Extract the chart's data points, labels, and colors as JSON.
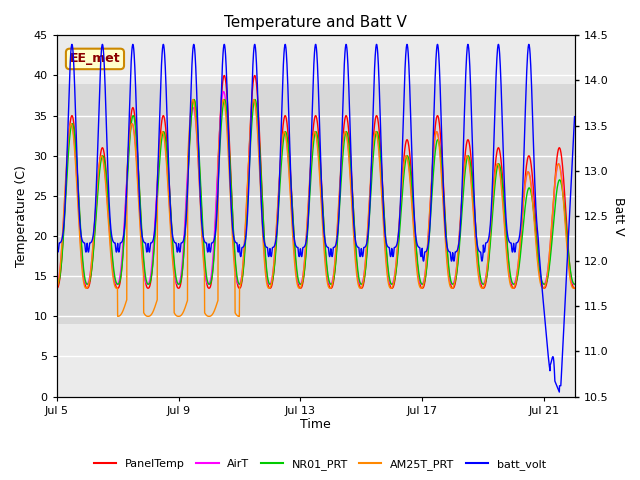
{
  "title": "Temperature and Batt V",
  "xlabel": "Time",
  "ylabel_left": "Temperature (C)",
  "ylabel_right": "Batt V",
  "ylim_left": [
    0,
    45
  ],
  "ylim_right": [
    10.5,
    14.5
  ],
  "xlim": [
    0,
    17
  ],
  "xtick_labels": [
    "Jul 5",
    "Jul 9",
    "Jul 13",
    "Jul 17",
    "Jul 21"
  ],
  "xtick_positions": [
    0,
    4,
    8,
    12,
    16
  ],
  "annotation_text": "EE_met",
  "shaded_band_light": [
    9,
    39
  ],
  "series_colors": {
    "PanelTemp": "#ff0000",
    "AirT": "#ff00ff",
    "NR01_PRT": "#00cc00",
    "AM25T_PRT": "#ff8800",
    "batt_volt": "#0000ff"
  },
  "background_color": "#ffffff",
  "plot_bg_color": "#ebebeb",
  "shaded_inner_color": "#d8d8d8"
}
